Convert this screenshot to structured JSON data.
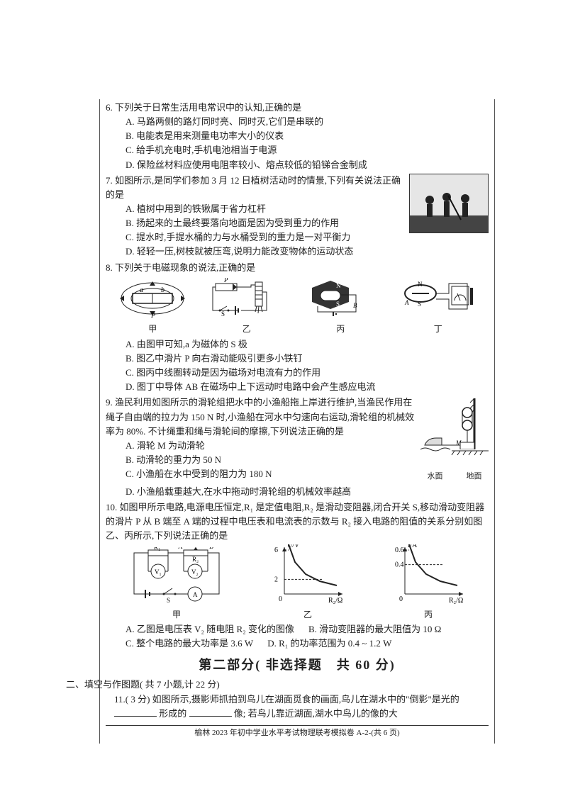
{
  "q6": {
    "stem": "6. 下列关于日常生活用电常识中的认知,正确的是",
    "A": "A. 马路两侧的路灯同时亮、同时灭,它们是串联的",
    "B": "B. 电能表是用来测量电功率大小的仪表",
    "C": "C. 给手机充电时,手机电池相当于电源",
    "D": "D. 保险丝材料应使用电阻率较小、熔点较低的铅锑合金制成"
  },
  "q7": {
    "stem": "7. 如图所示,是同学们参加 3 月 12 日植树活动时的情景,下列有关说法正确的是",
    "A": "A. 植树中用到的铁锹属于省力杠杆",
    "B": "B. 扬起来的土最终要落向地面是因为受到重力的作用",
    "C": "C. 提水时,手提水桶的力与水桶受到的重力是一对平衡力",
    "D": "D. 轻轻一压,树枝就被压弯,说明力能改变物体的运动状态",
    "img_label": "植树照片"
  },
  "q8": {
    "stem": "8. 下列关于电磁现象的说法,正确的是",
    "fig_labels": {
      "a": "甲",
      "b": "乙",
      "c": "丙",
      "d": "丁"
    },
    "A": "A. 由图甲可知,a 为磁体的 S 极",
    "B": "B. 图乙中滑片 P 向右滑动能吸引更多小铁钉",
    "C": "C. 图丙中线圈转动是因为磁场对电流有力的作用",
    "D": "D. 图丁中导体 AB 在磁场中上下运动时电路中会产生感应电流",
    "jia_labels": {
      "a": "a",
      "b": "b",
      "p": "P"
    },
    "yi_labels": {
      "p": "P",
      "s": "S"
    },
    "bing_labels": {
      "s": "S",
      "b": "B"
    },
    "ding_labels": {
      "n": "N",
      "s": "S",
      "a": "A"
    }
  },
  "q9": {
    "stem_pre": "9. 渔民利用如图所示的滑轮组把水中的小渔船拖上岸进行维护,当渔民作用在绳子自由端的拉力为 150 N 时,小渔船在河水中匀速向右运动,滑轮组的机械效率为 80%. 不计绳重和绳与滑轮间的摩擦,下列说法正确的是",
    "A": "A. 滑轮 M 为动滑轮",
    "B": "B. 动滑轮的重力为 50 N",
    "C": "C. 小渔船在水中受到的阻力为 180 N",
    "D": "D. 小渔船载重越大,在水中拖动时滑轮组的机械效率越高",
    "fig": {
      "left": "水面",
      "right": "地面",
      "m": "M"
    }
  },
  "q10": {
    "stem": "10. 如图甲所示电路,电源电压恒定,R₁ 是定值电阻,R₂ 是滑动变阻器,闭合开关 S,移动滑动变阻器的滑片 P 从 B 端至 A 端的过程中电压表和电流表的示数与 R₂ 接入电路的阻值的关系分别如图乙、丙所示,下列说法正确的是",
    "A": "A. 乙图是电压表 V₂ 随电阻 R₂ 变化的图像",
    "B": "B. 滑动变阻器的最大阻值为 10 Ω",
    "C": "C. 整个电路的最大功率是 3.6 W",
    "D": "D. R₁ 的功率范围为 0.4 ~ 1.2 W",
    "jia_label": "甲",
    "yi": {
      "label": "乙",
      "y_axis": "U/V",
      "y_max": 6,
      "y_mid": 2,
      "x_axis": "R₂/Ω",
      "x_origin": "0",
      "curve_points": [
        [
          6,
          70
        ],
        [
          15,
          45
        ],
        [
          30,
          28
        ],
        [
          50,
          18
        ],
        [
          74,
          12
        ]
      ],
      "line_width": 2,
      "line_color": "#222222",
      "yticks": [
        0,
        2,
        6
      ]
    },
    "bing": {
      "label": "丙",
      "y_axis": "I/A",
      "y_top": "0.6",
      "y_mid": "0.4",
      "x_axis": "R₂/Ω",
      "x_origin": "0",
      "curve_points": [
        [
          6,
          70
        ],
        [
          15,
          45
        ],
        [
          30,
          28
        ],
        [
          50,
          18
        ],
        [
          74,
          12
        ]
      ],
      "line_width": 2,
      "line_color": "#222222",
      "yticks": [
        "0",
        "0.4",
        "0.6"
      ]
    },
    "ckt": {
      "r1": "R₁",
      "r2": "R₂",
      "A": "A",
      "B": "B",
      "V1": "V₁",
      "V2": "V₂",
      "S": "S",
      "Amp": "A"
    }
  },
  "part2_title": "第二部分( 非选择题　共 60 分)",
  "sec2_head": "二、填空与作图题( 共 7 小题,计 22 分)",
  "q11": {
    "pre": "11.( 3 分) 如图所示,摄影师抓拍到鸟儿在湖面觅食的画面,鸟儿在湖水中的\"倒影\"是光的",
    "mid1": "形成的",
    "mid2": "像; 若鸟儿靠近湖面,湖水中鸟儿的像的大"
  },
  "footer": "榆林 2023 年初中学业水平考试物理联考模拟卷 A-2-(共 6 页)"
}
